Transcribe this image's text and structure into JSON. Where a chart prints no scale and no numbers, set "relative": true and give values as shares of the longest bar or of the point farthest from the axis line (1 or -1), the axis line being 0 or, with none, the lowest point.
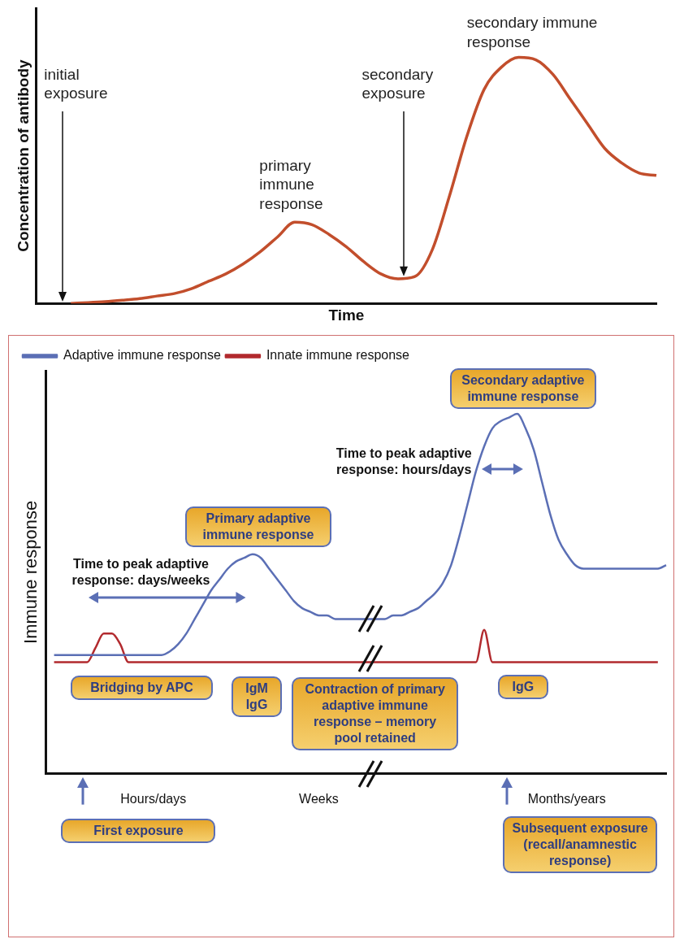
{
  "chart_data": [
    {
      "type": "line",
      "relative": true,
      "tick_labels": false,
      "xlabel": "Time",
      "ylabel": "Concentration of antibody",
      "categories": [
        null,
        null,
        null,
        null,
        null,
        null,
        null,
        null,
        null,
        null,
        null,
        null,
        null,
        null,
        null,
        null,
        null,
        null,
        null,
        null,
        null,
        null,
        null,
        null,
        null,
        null,
        null,
        null,
        null,
        null,
        null,
        null,
        null,
        null,
        null,
        null,
        null
      ],
      "series": [
        {
          "color": "#c24e2c",
          "values": [
            null,
            null,
            0,
            0.003,
            0.007,
            0.013,
            0.02,
            0.03,
            0.04,
            0.06,
            0.09,
            0.12,
            0.16,
            0.21,
            0.27,
            0.33,
            0.32,
            0.28,
            0.23,
            0.17,
            0.12,
            0.1,
            0.11,
            0.22,
            0.44,
            0.68,
            0.87,
            0.96,
            1,
            0.99,
            0.93,
            0.83,
            0.73,
            0.63,
            0.57,
            0.53,
            0.52
          ]
        }
      ],
      "annotations": [
        "initial exposure",
        "primary immune response",
        "secondary exposure",
        "secondary immune response"
      ]
    },
    {
      "type": "line",
      "relative": true,
      "tick_labels": "x",
      "ylabel": "Immune response",
      "legend": "top left",
      "categories": [
        null,
        null,
        null,
        null,
        null,
        null,
        null,
        null,
        null,
        null,
        null,
        null,
        null,
        "Hours/days",
        null,
        null,
        null,
        null,
        null,
        null,
        null,
        null,
        null,
        null,
        null,
        null,
        null,
        null,
        null,
        null,
        null,
        null,
        null,
        "Weeks",
        null,
        null,
        null,
        null,
        null,
        null,
        null,
        null,
        null,
        null,
        null,
        null,
        null,
        null,
        null,
        null,
        null,
        null,
        null,
        null,
        null,
        null,
        null,
        null,
        null,
        null,
        null,
        null,
        null,
        "Months/years",
        null,
        null,
        null,
        null,
        null,
        null,
        null,
        null,
        null,
        null,
        null,
        null
      ],
      "series": [
        {
          "name": "Adaptive immune response",
          "color": "#5b6fb5",
          "values": [
            null,
            0.33,
            0.33,
            0.33,
            0.33,
            0.33,
            0.33,
            0.33,
            0.33,
            0.33,
            0.33,
            0.33,
            0.33,
            0.33,
            0.33,
            0.34,
            0.36,
            0.39,
            0.43,
            0.47,
            0.51,
            0.54,
            0.57,
            0.59,
            0.6,
            0.61,
            0.6,
            0.57,
            0.54,
            0.51,
            0.48,
            0.46,
            0.45,
            0.44,
            0.44,
            0.43,
            0.43,
            0.43,
            0.43,
            0.43,
            0.43,
            0.43,
            0.44,
            0.44,
            0.45,
            0.46,
            0.48,
            0.5,
            0.53,
            0.58,
            0.66,
            0.75,
            0.84,
            0.91,
            0.96,
            0.98,
            0.99,
            1,
            0.96,
            0.9,
            0.81,
            0.72,
            0.65,
            0.61,
            0.58,
            0.57,
            0.57,
            0.57,
            0.57,
            0.57,
            0.57,
            0.57,
            0.57,
            0.57,
            0.57,
            0.58
          ]
        },
        {
          "name": "Innate immune response",
          "color": "#b22a2e",
          "values": [
            null,
            0.31,
            0.31,
            0.31,
            0.31,
            0.31,
            0.35,
            0.39,
            0.39,
            0.36,
            0.31,
            0.31,
            0.31,
            0.31,
            0.31,
            0.31,
            0.31,
            0.31,
            0.31,
            0.31,
            0.31,
            0.31,
            0.31,
            0.31,
            0.31,
            0.31,
            0.31,
            0.31,
            0.31,
            0.31,
            0.31,
            0.31,
            0.31,
            0.31,
            0.31,
            0.31,
            0.31,
            0.31,
            0.31,
            0.31,
            0.31,
            0.31,
            0.31,
            0.31,
            0.31,
            0.31,
            0.31,
            0.31,
            0.31,
            0.31,
            0.31,
            0.31,
            0.31,
            0.4,
            0.31,
            0.31,
            0.31,
            0.31,
            0.31,
            0.31,
            0.31,
            0.31,
            0.31,
            0.31,
            0.31,
            0.31,
            0.31,
            0.31,
            0.31,
            0.31,
            0.31,
            0.31,
            0.31,
            0.31,
            0.31,
            null
          ]
        }
      ],
      "annotations": [
        "Secondary adaptive immune response",
        "Primary adaptive immune response",
        "Time to peak adaptive response: days/weeks",
        "Time to peak adaptive response: hours/days",
        "Bridging by APC",
        "IgM IgG",
        "Contraction of primary adaptive immune response – memory pool retained",
        "IgG",
        "First exposure",
        "Subsequent exposure (recall/anamnestic response)"
      ]
    }
  ]
}
